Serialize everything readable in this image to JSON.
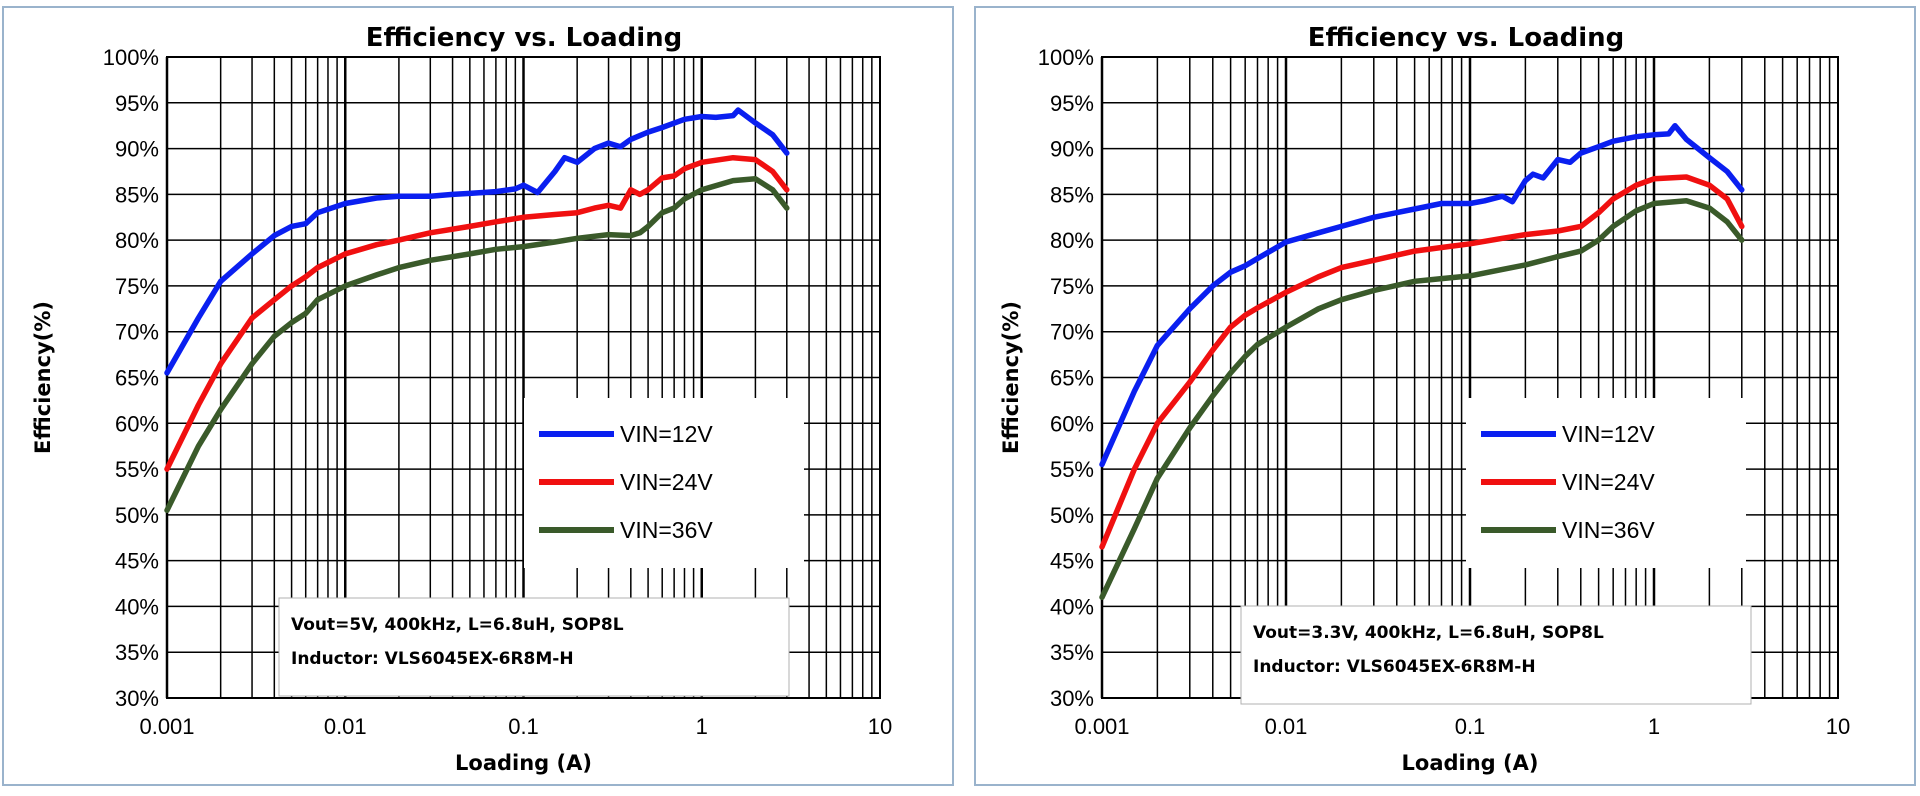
{
  "colors": {
    "vin12": "#0a1ff0",
    "vin24": "#f01010",
    "vin36": "#3a5a2a",
    "grid": "#000000",
    "panel_border": "#9ab3cc"
  },
  "chart_data": [
    {
      "type": "line",
      "title": "Efficiency vs. Loading",
      "xlabel": "Loading (A)",
      "ylabel": "Efficiency(%)",
      "x_scale": "log",
      "xlim": [
        0.001,
        10
      ],
      "ylim": [
        30,
        100
      ],
      "x_ticks": [
        "0.001",
        "0.01",
        "0.1",
        "1",
        "10"
      ],
      "y_ticks": [
        "30%",
        "35%",
        "40%",
        "45%",
        "50%",
        "55%",
        "60%",
        "65%",
        "70%",
        "75%",
        "80%",
        "85%",
        "90%",
        "95%",
        "100%"
      ],
      "grid": true,
      "legend_position": "center-right",
      "annotation": [
        "Vout=5V, 400kHz, L=6.8uH, SOP8L",
        "Inductor: VLS6045EX-6R8M-H"
      ],
      "series": [
        {
          "name": "VIN=12V",
          "color": "#0a1ff0",
          "x": [
            0.001,
            0.0015,
            0.002,
            0.003,
            0.004,
            0.005,
            0.006,
            0.007,
            0.01,
            0.015,
            0.02,
            0.03,
            0.04,
            0.05,
            0.07,
            0.09,
            0.1,
            0.12,
            0.15,
            0.17,
            0.2,
            0.25,
            0.3,
            0.35,
            0.4,
            0.5,
            0.6,
            0.8,
            1.0,
            1.2,
            1.5,
            1.6,
            2.0,
            2.5,
            3.0
          ],
          "y": [
            65.5,
            71.5,
            75.5,
            78.5,
            80.5,
            81.5,
            81.8,
            83.0,
            84.0,
            84.6,
            84.8,
            84.8,
            85.0,
            85.1,
            85.3,
            85.6,
            86.0,
            85.2,
            87.5,
            89.0,
            88.5,
            90.0,
            90.6,
            90.2,
            91.0,
            91.8,
            92.3,
            93.2,
            93.5,
            93.4,
            93.6,
            94.2,
            92.8,
            91.5,
            89.5
          ]
        },
        {
          "name": "VIN=24V",
          "color": "#f01010",
          "x": [
            0.001,
            0.0015,
            0.002,
            0.003,
            0.004,
            0.005,
            0.006,
            0.007,
            0.01,
            0.015,
            0.02,
            0.03,
            0.05,
            0.07,
            0.1,
            0.15,
            0.2,
            0.25,
            0.3,
            0.35,
            0.4,
            0.45,
            0.5,
            0.6,
            0.7,
            0.8,
            1.0,
            1.5,
            2.0,
            2.5,
            3.0
          ],
          "y": [
            55.0,
            62.0,
            66.5,
            71.5,
            73.5,
            75.0,
            76.0,
            77.0,
            78.5,
            79.5,
            80.0,
            80.8,
            81.5,
            82.0,
            82.5,
            82.8,
            83.0,
            83.5,
            83.8,
            83.5,
            85.5,
            85.0,
            85.5,
            86.8,
            87.0,
            87.8,
            88.5,
            89.0,
            88.8,
            87.5,
            85.5
          ]
        },
        {
          "name": "VIN=36V",
          "color": "#3a5a2a",
          "x": [
            0.001,
            0.0015,
            0.002,
            0.003,
            0.004,
            0.005,
            0.006,
            0.007,
            0.01,
            0.015,
            0.02,
            0.03,
            0.05,
            0.07,
            0.1,
            0.15,
            0.2,
            0.3,
            0.4,
            0.45,
            0.5,
            0.6,
            0.7,
            0.8,
            1.0,
            1.5,
            2.0,
            2.5,
            3.0
          ],
          "y": [
            50.5,
            57.5,
            61.5,
            66.5,
            69.5,
            71.0,
            72.0,
            73.5,
            75.0,
            76.2,
            77.0,
            77.8,
            78.5,
            79.0,
            79.3,
            79.8,
            80.2,
            80.6,
            80.5,
            80.8,
            81.5,
            83.0,
            83.5,
            84.5,
            85.5,
            86.5,
            86.7,
            85.5,
            83.5
          ]
        }
      ]
    },
    {
      "type": "line",
      "title": "Efficiency vs. Loading",
      "xlabel": "Loading (A)",
      "ylabel": "Efficiency(%)",
      "x_scale": "log",
      "xlim": [
        0.001,
        10
      ],
      "ylim": [
        30,
        100
      ],
      "x_ticks": [
        "0.001",
        "0.01",
        "0.1",
        "1",
        "10"
      ],
      "y_ticks": [
        "30%",
        "35%",
        "40%",
        "45%",
        "50%",
        "55%",
        "60%",
        "65%",
        "70%",
        "75%",
        "80%",
        "85%",
        "90%",
        "95%",
        "100%"
      ],
      "grid": true,
      "legend_position": "center-right",
      "annotation": [
        "Vout=3.3V, 400kHz, L=6.8uH, SOP8L",
        "Inductor: VLS6045EX-6R8M-H"
      ],
      "series": [
        {
          "name": "VIN=12V",
          "color": "#0a1ff0",
          "x": [
            0.001,
            0.0015,
            0.002,
            0.003,
            0.004,
            0.005,
            0.006,
            0.007,
            0.01,
            0.015,
            0.02,
            0.03,
            0.05,
            0.07,
            0.1,
            0.12,
            0.15,
            0.17,
            0.2,
            0.22,
            0.25,
            0.3,
            0.35,
            0.4,
            0.5,
            0.6,
            0.8,
            1.0,
            1.2,
            1.3,
            1.5,
            2.0,
            2.5,
            3.0
          ],
          "y": [
            55.5,
            63.5,
            68.5,
            72.5,
            75.0,
            76.5,
            77.2,
            78.0,
            79.8,
            80.8,
            81.5,
            82.5,
            83.4,
            84.0,
            84.0,
            84.3,
            84.8,
            84.2,
            86.5,
            87.2,
            86.8,
            88.8,
            88.5,
            89.5,
            90.2,
            90.8,
            91.3,
            91.5,
            91.6,
            92.5,
            91.0,
            89.0,
            87.5,
            85.5
          ]
        },
        {
          "name": "VIN=24V",
          "color": "#f01010",
          "x": [
            0.001,
            0.0015,
            0.002,
            0.003,
            0.004,
            0.005,
            0.006,
            0.007,
            0.01,
            0.015,
            0.02,
            0.03,
            0.05,
            0.07,
            0.1,
            0.15,
            0.2,
            0.3,
            0.4,
            0.5,
            0.6,
            0.8,
            1.0,
            1.5,
            2.0,
            2.5,
            3.0
          ],
          "y": [
            46.5,
            55.0,
            60.0,
            64.5,
            68.0,
            70.5,
            71.8,
            72.6,
            74.3,
            76.0,
            77.0,
            77.8,
            78.8,
            79.2,
            79.6,
            80.2,
            80.6,
            81.0,
            81.5,
            83.0,
            84.5,
            86.0,
            86.7,
            86.9,
            86.0,
            84.5,
            81.5
          ]
        },
        {
          "name": "VIN=36V",
          "color": "#3a5a2a",
          "x": [
            0.001,
            0.0015,
            0.002,
            0.003,
            0.004,
            0.005,
            0.006,
            0.007,
            0.01,
            0.015,
            0.02,
            0.03,
            0.05,
            0.07,
            0.1,
            0.15,
            0.2,
            0.3,
            0.4,
            0.5,
            0.6,
            0.8,
            1.0,
            1.5,
            2.0,
            2.5,
            3.0
          ],
          "y": [
            41.0,
            48.5,
            54.0,
            59.5,
            63.0,
            65.5,
            67.3,
            68.6,
            70.5,
            72.5,
            73.5,
            74.5,
            75.5,
            75.8,
            76.1,
            76.8,
            77.3,
            78.2,
            78.8,
            80.0,
            81.5,
            83.2,
            84.0,
            84.3,
            83.5,
            82.0,
            80.0
          ]
        }
      ]
    }
  ]
}
